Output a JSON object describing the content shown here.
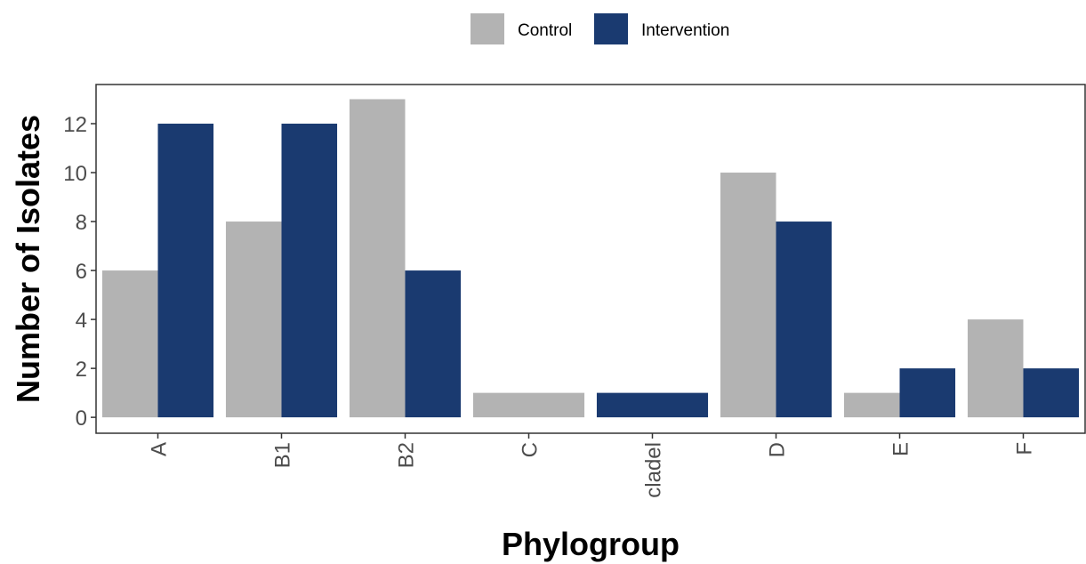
{
  "chart_data": {
    "type": "bar",
    "categories": [
      "A",
      "B1",
      "B2",
      "C",
      "cladel",
      "D",
      "E",
      "F"
    ],
    "series": [
      {
        "name": "Control",
        "values": [
          6,
          8,
          13,
          1,
          null,
          10,
          1,
          4
        ],
        "color": "#b3b3b3"
      },
      {
        "name": "Intervention",
        "values": [
          12,
          12,
          6,
          null,
          1,
          8,
          2,
          2
        ],
        "color": "#1a3a70"
      }
    ],
    "xlabel": "Phylogroup",
    "ylabel": "Number of Isolates",
    "ylim": [
      -0.65,
      13.6
    ],
    "yticks": [
      0,
      2,
      4,
      6,
      8,
      10,
      12
    ],
    "grid": false,
    "legend_position": "top"
  }
}
